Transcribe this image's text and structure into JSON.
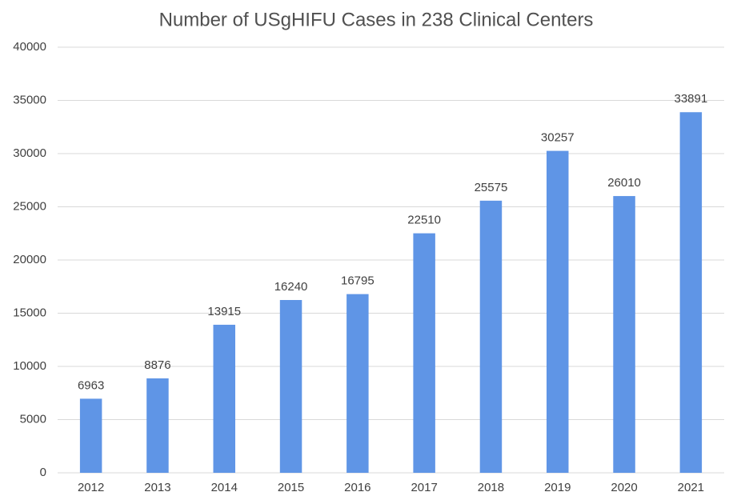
{
  "chart_data": {
    "type": "bar",
    "title": "Number of USgHIFU Cases in 238 Clinical Centers",
    "categories": [
      "2012",
      "2013",
      "2014",
      "2015",
      "2016",
      "2017",
      "2018",
      "2019",
      "2020",
      "2021"
    ],
    "values": [
      6963,
      8876,
      13915,
      16240,
      16795,
      22510,
      25575,
      30257,
      26010,
      33891
    ],
    "color": "#5f95e6",
    "ylim": [
      0,
      40000
    ],
    "yticks": [
      0,
      5000,
      10000,
      15000,
      20000,
      25000,
      30000,
      35000,
      40000
    ],
    "grid": true,
    "data_labels": true
  }
}
